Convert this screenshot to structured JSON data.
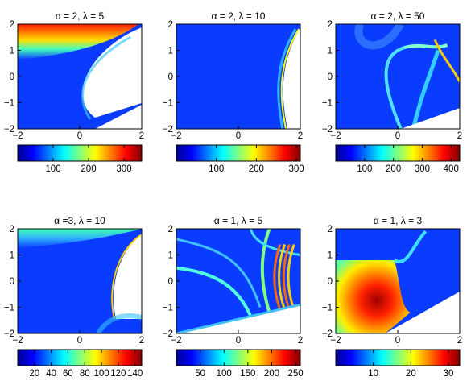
{
  "colors": {
    "jet": [
      "#00008f",
      "#0000ff",
      "#0080ff",
      "#00ffff",
      "#80ff80",
      "#ffff00",
      "#ff8000",
      "#ff0000",
      "#800000"
    ]
  },
  "chart_data": [
    {
      "type": "heatmap",
      "title": "α = 2, λ = 5",
      "xlim": [
        -2,
        2
      ],
      "ylim": [
        -2,
        2
      ],
      "xticks": [
        -2,
        0,
        2
      ],
      "yticks": [
        -2,
        -1,
        0,
        1,
        2
      ],
      "colorbar": {
        "ticks": [
          100,
          200,
          300
        ],
        "range": [
          0,
          350
        ]
      }
    },
    {
      "type": "heatmap",
      "title": "α = 2, λ = 10",
      "xlim": [
        -2,
        2
      ],
      "ylim": [
        -2,
        2
      ],
      "xticks": [
        -2,
        0,
        2
      ],
      "yticks": [
        -2,
        -1,
        0,
        1,
        2
      ],
      "colorbar": {
        "ticks": [
          100,
          200,
          300
        ],
        "range": [
          0,
          310
        ]
      }
    },
    {
      "type": "heatmap",
      "title": "α = 2, λ = 50",
      "xlim": [
        -2,
        2
      ],
      "ylim": [
        -2,
        2
      ],
      "xticks": [
        -2,
        0,
        2
      ],
      "yticks": [
        -2,
        -1,
        0,
        1,
        2
      ],
      "colorbar": {
        "ticks": [
          100,
          200,
          300,
          400
        ],
        "range": [
          0,
          430
        ]
      }
    },
    {
      "type": "heatmap",
      "title": "α =3, λ = 10",
      "xlim": [
        -2,
        2
      ],
      "ylim": [
        -2,
        2
      ],
      "xticks": [
        -2,
        0,
        2
      ],
      "yticks": [
        -2,
        -1,
        0,
        1,
        2
      ],
      "colorbar": {
        "ticks": [
          20,
          40,
          60,
          80,
          100,
          120,
          140
        ],
        "range": [
          0,
          148
        ]
      }
    },
    {
      "type": "heatmap",
      "title": "α = 1, λ = 5",
      "xlim": [
        -2,
        2
      ],
      "ylim": [
        -2,
        2
      ],
      "xticks": [
        -2,
        0,
        2
      ],
      "yticks": [
        -2,
        -1,
        0,
        1,
        2
      ],
      "colorbar": {
        "ticks": [
          50,
          100,
          150,
          200,
          250
        ],
        "range": [
          0,
          260
        ]
      }
    },
    {
      "type": "heatmap",
      "title": "α = 1, λ = 3",
      "xlim": [
        -2,
        2
      ],
      "ylim": [
        -2,
        2
      ],
      "xticks": [
        -2,
        0,
        2
      ],
      "yticks": [
        -2,
        -1,
        0,
        1,
        2
      ],
      "colorbar": {
        "ticks": [
          10,
          20,
          30
        ],
        "range": [
          0,
          33
        ]
      }
    }
  ]
}
